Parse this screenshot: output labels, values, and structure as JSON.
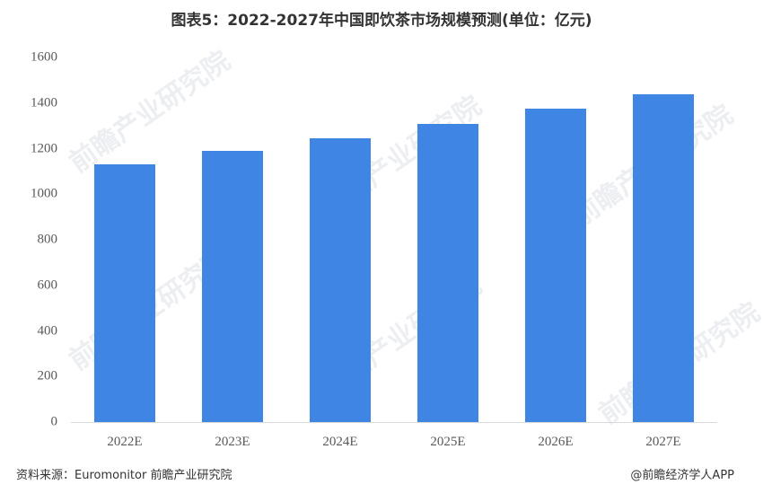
{
  "title": "图表5：2022-2027年中国即饮茶市场规模预测(单位：亿元)",
  "source": "资料来源：Euromonitor 前瞻产业研究院",
  "credit": "@前瞻经济学人APP",
  "watermark": "前瞻产业研究院",
  "colors": {
    "bar": "#3f86e4",
    "axis": "#d9d9d9",
    "text": "#595959"
  },
  "chart_data": {
    "type": "bar",
    "title": "图表5：2022-2027年中国即饮茶市场规模预测(单位：亿元)",
    "xlabel": "",
    "ylabel": "",
    "categories": [
      "2022E",
      "2023E",
      "2024E",
      "2025E",
      "2026E",
      "2027E"
    ],
    "values": [
      1130,
      1190,
      1245,
      1308,
      1375,
      1438
    ],
    "ylim": [
      0,
      1600
    ],
    "yticks": [
      0,
      200,
      400,
      600,
      800,
      1000,
      1200,
      1400,
      1600
    ],
    "grid": false,
    "legend": null
  }
}
